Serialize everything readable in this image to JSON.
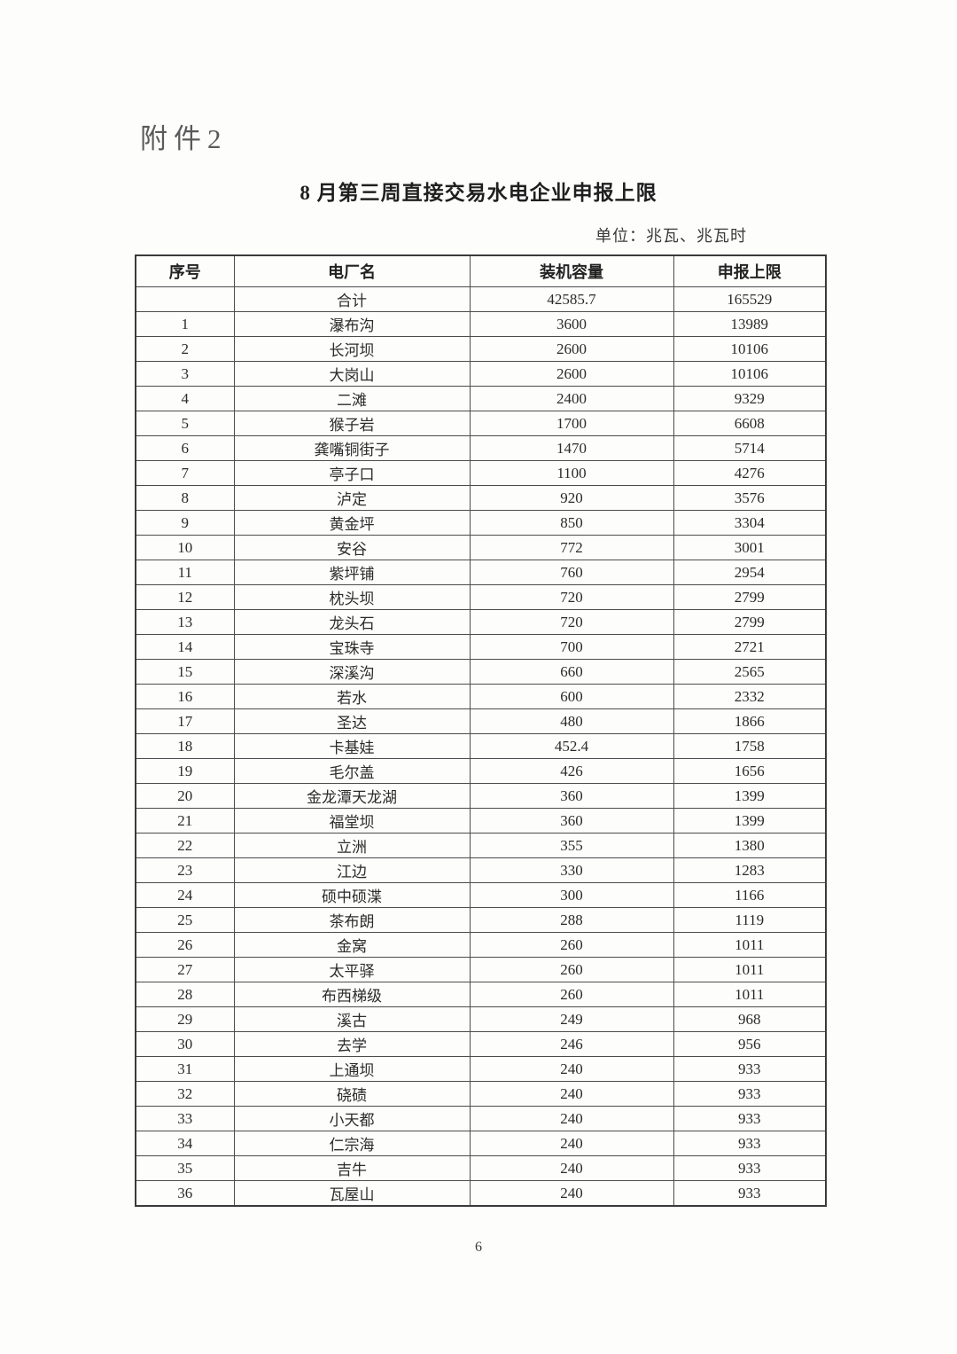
{
  "attachment_label": "附件2",
  "title": "8 月第三周直接交易水电企业申报上限",
  "unit_note": "单位：兆瓦、兆瓦时",
  "page_number": "6",
  "table": {
    "headers": [
      "序号",
      "电厂名",
      "装机容量",
      "申报上限"
    ],
    "rows": [
      [
        "",
        "合计",
        "42585.7",
        "165529"
      ],
      [
        "1",
        "瀑布沟",
        "3600",
        "13989"
      ],
      [
        "2",
        "长河坝",
        "2600",
        "10106"
      ],
      [
        "3",
        "大岗山",
        "2600",
        "10106"
      ],
      [
        "4",
        "二滩",
        "2400",
        "9329"
      ],
      [
        "5",
        "猴子岩",
        "1700",
        "6608"
      ],
      [
        "6",
        "龚嘴铜街子",
        "1470",
        "5714"
      ],
      [
        "7",
        "亭子口",
        "1100",
        "4276"
      ],
      [
        "8",
        "泸定",
        "920",
        "3576"
      ],
      [
        "9",
        "黄金坪",
        "850",
        "3304"
      ],
      [
        "10",
        "安谷",
        "772",
        "3001"
      ],
      [
        "11",
        "紫坪铺",
        "760",
        "2954"
      ],
      [
        "12",
        "枕头坝",
        "720",
        "2799"
      ],
      [
        "13",
        "龙头石",
        "720",
        "2799"
      ],
      [
        "14",
        "宝珠寺",
        "700",
        "2721"
      ],
      [
        "15",
        "深溪沟",
        "660",
        "2565"
      ],
      [
        "16",
        "若水",
        "600",
        "2332"
      ],
      [
        "17",
        "圣达",
        "480",
        "1866"
      ],
      [
        "18",
        "卡基娃",
        "452.4",
        "1758"
      ],
      [
        "19",
        "毛尔盖",
        "426",
        "1656"
      ],
      [
        "20",
        "金龙潭天龙湖",
        "360",
        "1399"
      ],
      [
        "21",
        "福堂坝",
        "360",
        "1399"
      ],
      [
        "22",
        "立洲",
        "355",
        "1380"
      ],
      [
        "23",
        "江边",
        "330",
        "1283"
      ],
      [
        "24",
        "硕中硕渫",
        "300",
        "1166"
      ],
      [
        "25",
        "茶布朗",
        "288",
        "1119"
      ],
      [
        "26",
        "金窝",
        "260",
        "1011"
      ],
      [
        "27",
        "太平驿",
        "260",
        "1011"
      ],
      [
        "28",
        "布西梯级",
        "260",
        "1011"
      ],
      [
        "29",
        "溪古",
        "249",
        "968"
      ],
      [
        "30",
        "去学",
        "246",
        "956"
      ],
      [
        "31",
        "上通坝",
        "240",
        "933"
      ],
      [
        "32",
        "硗碛",
        "240",
        "933"
      ],
      [
        "33",
        "小天都",
        "240",
        "933"
      ],
      [
        "34",
        "仁宗海",
        "240",
        "933"
      ],
      [
        "35",
        "吉牛",
        "240",
        "933"
      ],
      [
        "36",
        "瓦屋山",
        "240",
        "933"
      ]
    ]
  }
}
